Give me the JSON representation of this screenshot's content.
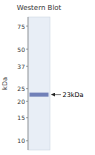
{
  "chart_data": {
    "type": "band",
    "title": "Western Blot",
    "y_label": "kDa",
    "values": [
      22.5
    ],
    "heights": [
      1.6
    ],
    "color": "#7080b8",
    "log": "y",
    "ylim": [
      8.5,
      88
    ],
    "yticks": [
      10,
      15,
      20,
      25,
      37,
      50,
      75
    ],
    "annotations": [
      {
        "text": "23kDa",
        "y": 22.5
      }
    ]
  }
}
